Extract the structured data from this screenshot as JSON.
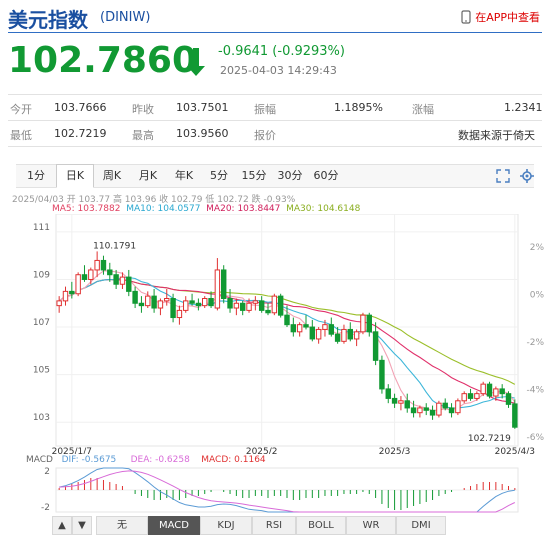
{
  "header": {
    "title": "美元指数",
    "code": "(DINIW)",
    "app_link": "在APP中查看",
    "price": "102.7860",
    "change": "-0.9641 (-0.9293%)",
    "timestamp": "2025-04-03 14:29:43"
  },
  "stats": {
    "row1": [
      {
        "label": "今开",
        "value": "103.7666"
      },
      {
        "label": "昨收",
        "value": "103.7501"
      },
      {
        "label": "振幅",
        "value": "1.1895%"
      },
      {
        "label": "涨幅",
        "value": "1.2341"
      }
    ],
    "row2": [
      {
        "label": "最低",
        "value": "102.7219"
      },
      {
        "label": "最高",
        "value": "103.9560"
      },
      {
        "label": "报价",
        "value": ""
      },
      {
        "label": "",
        "value": "数据来源于倚天"
      }
    ]
  },
  "tabs": [
    "1分",
    "日K",
    "周K",
    "月K",
    "年K",
    "5分",
    "15分",
    "30分",
    "60分"
  ],
  "active_tab": "日K",
  "legend": {
    "ohlc": "2025/04/03 开 103.77 高 103.96 收 102.79 低 102.72 跌 -0.93%",
    "ma5": "MA5: 103.7882",
    "ma10": "MA10: 104.0577",
    "ma20": "MA20: 103.8447",
    "ma30": "MA30: 104.6148"
  },
  "macd_legend": {
    "macd": "MACD",
    "dif": "DIF: -0.5675",
    "dea": "DEA: -0.6258",
    "value": "MACD: 0.1164"
  },
  "bottom_tabs": [
    "▲",
    "▼",
    "无",
    "MACD",
    "KDJ",
    "RSI",
    "BOLL",
    "WR",
    "DMI"
  ],
  "bottom_active": "MACD",
  "chart_data": {
    "type": "candlestick",
    "y_ticks": [
      "111",
      "109",
      "107",
      "105",
      "103"
    ],
    "pct_ticks": [
      "2%",
      "0%",
      "-2%",
      "-4%",
      "-6%"
    ],
    "x_ticks": [
      "2025/1/7",
      "2025/2",
      "2025/3",
      "2025/4/3"
    ],
    "high_label": "110.1791",
    "low_label": "102.7219",
    "macd_ticks": [
      "2",
      "-2"
    ],
    "ylim": [
      102,
      111.5
    ],
    "candles": [
      [
        107.9,
        108.3,
        107.6,
        108.1
      ],
      [
        108.1,
        108.7,
        107.9,
        108.5
      ],
      [
        108.5,
        108.9,
        108.2,
        108.4
      ],
      [
        108.4,
        109.3,
        108.3,
        109.2
      ],
      [
        109.2,
        109.6,
        108.9,
        109.0
      ],
      [
        109.0,
        109.5,
        108.8,
        109.4
      ],
      [
        109.4,
        110.18,
        109.1,
        109.8
      ],
      [
        109.8,
        110.0,
        109.2,
        109.4
      ],
      [
        109.4,
        109.7,
        108.9,
        109.2
      ],
      [
        109.2,
        109.4,
        108.6,
        108.8
      ],
      [
        108.8,
        109.3,
        108.6,
        109.1
      ],
      [
        109.1,
        109.4,
        108.3,
        108.5
      ],
      [
        108.5,
        108.7,
        107.8,
        108.0
      ],
      [
        108.0,
        108.3,
        107.6,
        107.9
      ],
      [
        107.9,
        108.5,
        107.8,
        108.3
      ],
      [
        108.3,
        108.6,
        107.6,
        107.8
      ],
      [
        107.8,
        108.2,
        107.5,
        108.1
      ],
      [
        108.1,
        108.6,
        107.9,
        108.2
      ],
      [
        108.2,
        108.4,
        107.2,
        107.4
      ],
      [
        107.4,
        107.9,
        107.1,
        107.7
      ],
      [
        107.7,
        108.3,
        107.6,
        108.1
      ],
      [
        108.1,
        108.4,
        107.9,
        108.0
      ],
      [
        108.0,
        108.2,
        107.7,
        107.9
      ],
      [
        107.9,
        108.3,
        107.8,
        108.2
      ],
      [
        108.2,
        108.5,
        107.8,
        107.9
      ],
      [
        107.8,
        109.9,
        107.7,
        109.4
      ],
      [
        109.4,
        109.6,
        108.0,
        108.2
      ],
      [
        108.2,
        108.6,
        107.6,
        107.8
      ],
      [
        107.8,
        108.2,
        107.5,
        108.0
      ],
      [
        108.0,
        108.1,
        107.5,
        107.7
      ],
      [
        107.7,
        108.2,
        107.6,
        108.0
      ],
      [
        108.0,
        108.3,
        107.7,
        108.1
      ],
      [
        108.1,
        108.3,
        107.6,
        107.7
      ],
      [
        107.7,
        108.0,
        107.5,
        107.6
      ],
      [
        107.6,
        108.4,
        107.5,
        108.3
      ],
      [
        108.3,
        108.4,
        107.4,
        107.5
      ],
      [
        107.5,
        107.9,
        107.0,
        107.1
      ],
      [
        107.1,
        107.4,
        106.6,
        106.8
      ],
      [
        106.8,
        107.2,
        106.6,
        107.1
      ],
      [
        107.1,
        107.5,
        106.9,
        107.0
      ],
      [
        107.0,
        107.3,
        106.4,
        106.5
      ],
      [
        106.5,
        107.0,
        106.3,
        106.9
      ],
      [
        106.9,
        107.3,
        106.6,
        107.1
      ],
      [
        107.1,
        107.4,
        106.6,
        106.7
      ],
      [
        106.7,
        107.0,
        106.3,
        106.4
      ],
      [
        106.4,
        107.1,
        106.3,
        106.9
      ],
      [
        106.9,
        107.2,
        106.4,
        106.5
      ],
      [
        106.5,
        106.9,
        106.2,
        106.8
      ],
      [
        106.8,
        107.6,
        106.7,
        107.5
      ],
      [
        107.5,
        107.6,
        106.6,
        106.8
      ],
      [
        106.8,
        107.2,
        105.4,
        105.6
      ],
      [
        105.6,
        105.8,
        104.2,
        104.4
      ],
      [
        104.4,
        104.6,
        103.8,
        104.0
      ],
      [
        104.0,
        104.2,
        103.6,
        103.8
      ],
      [
        103.8,
        104.1,
        103.5,
        103.9
      ],
      [
        103.9,
        104.2,
        103.4,
        103.6
      ],
      [
        103.6,
        103.9,
        103.2,
        103.4
      ],
      [
        103.4,
        103.7,
        103.2,
        103.6
      ],
      [
        103.6,
        103.8,
        103.3,
        103.5
      ],
      [
        103.5,
        103.7,
        103.1,
        103.3
      ],
      [
        103.3,
        103.9,
        103.2,
        103.8
      ],
      [
        103.8,
        104.0,
        103.5,
        103.6
      ],
      [
        103.6,
        103.8,
        103.2,
        103.4
      ],
      [
        103.4,
        104.0,
        103.3,
        103.9
      ],
      [
        103.9,
        104.3,
        103.8,
        104.2
      ],
      [
        104.2,
        104.4,
        103.9,
        104.0
      ],
      [
        104.0,
        104.3,
        103.9,
        104.2
      ],
      [
        104.2,
        104.7,
        104.1,
        104.6
      ],
      [
        104.6,
        104.7,
        104.0,
        104.1
      ],
      [
        104.1,
        104.5,
        103.9,
        104.4
      ],
      [
        104.4,
        104.6,
        104.0,
        104.2
      ],
      [
        104.2,
        104.3,
        103.6,
        103.75
      ],
      [
        103.77,
        103.96,
        102.72,
        102.79
      ]
    ],
    "macd_hist": [
      0.1,
      0.2,
      0.3,
      0.4,
      0.5,
      0.6,
      0.6,
      0.5,
      0.4,
      0.3,
      0.2,
      0.0,
      -0.2,
      -0.3,
      -0.4,
      -0.5,
      -0.5,
      -0.4,
      -0.5,
      -0.5,
      -0.4,
      -0.3,
      -0.3,
      -0.2,
      -0.1,
      0.0,
      -0.1,
      -0.2,
      -0.3,
      -0.4,
      -0.4,
      -0.3,
      -0.3,
      -0.4,
      -0.3,
      -0.3,
      -0.4,
      -0.5,
      -0.5,
      -0.4,
      -0.4,
      -0.4,
      -0.3,
      -0.3,
      -0.3,
      -0.2,
      -0.2,
      -0.2,
      -0.1,
      -0.2,
      -0.4,
      -0.7,
      -0.9,
      -1.0,
      -1.0,
      -0.9,
      -0.8,
      -0.7,
      -0.6,
      -0.5,
      -0.3,
      -0.2,
      -0.1,
      0.0,
      0.1,
      0.2,
      0.3,
      0.4,
      0.4,
      0.4,
      0.3,
      0.2,
      0.1
    ],
    "colors": {
      "up": "#e03131",
      "down": "#119933",
      "ma5": "#f2a3b5",
      "ma10": "#3db6d9",
      "ma20": "#e0316b",
      "ma30": "#9bbf2a",
      "dif": "#5b9bd5",
      "dea": "#d86bd8"
    }
  }
}
